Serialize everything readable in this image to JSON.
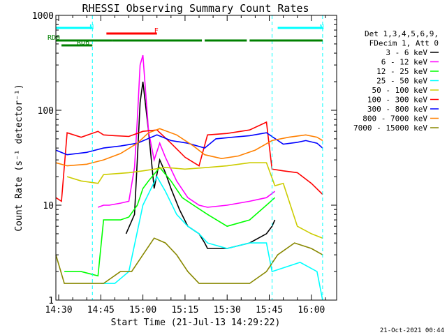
{
  "chart_data": {
    "type": "line",
    "title": "RHESSI Observing Summary Count Rates",
    "xlabel": "Start Time (21-Jul-13 14:29:22)",
    "ylabel": "Count Rate (s⁻¹ detector⁻¹)",
    "yscale": "log",
    "ylim": [
      1,
      1000
    ],
    "xlim": [
      "14:29",
      "16:09"
    ],
    "x_ticks": [
      "14:30",
      "14:45",
      "15:00",
      "15:15",
      "15:30",
      "15:45",
      "16:00"
    ],
    "y_ticks": [
      "1",
      "10",
      "100",
      "1000"
    ],
    "legend_title": [
      "Det 1,3,4,5,6,9,",
      "FDecim 1, Att 0"
    ],
    "legend_position": "right",
    "series": [
      {
        "name": "3 - 6 keV",
        "color": "#000000",
        "x": [
          "14:29",
          "14:38",
          "14:44",
          "14:48",
          "14:51",
          "14:54",
          "14:57",
          "14:58",
          "14:59",
          "15:00",
          "15:02",
          "15:04",
          "15:06",
          "15:08",
          "15:10",
          "15:13",
          "15:16",
          "15:20",
          "15:22",
          "15:23",
          "15:30",
          "15:38",
          "15:44",
          "15:46",
          "15:47"
        ],
        "y": [
          null,
          null,
          null,
          null,
          null,
          5,
          8,
          30,
          120,
          200,
          60,
          15,
          30,
          22,
          15,
          9,
          6,
          5,
          4,
          3.5,
          3.5,
          4,
          5,
          6,
          7
        ]
      },
      {
        "name": "6 - 12 keV",
        "color": "#ff00ff",
        "x": [
          "14:44",
          "14:46",
          "14:48",
          "14:52",
          "14:55",
          "14:57",
          "14:58",
          "14:59",
          "15:00",
          "15:02",
          "15:04",
          "15:06",
          "15:08",
          "15:12",
          "15:16",
          "15:20",
          "15:23",
          "15:30",
          "15:38",
          "15:44",
          "15:47"
        ],
        "y": [
          9.5,
          10,
          10,
          10.5,
          11,
          25,
          80,
          300,
          380,
          60,
          30,
          45,
          32,
          18,
          12,
          10,
          9.5,
          10,
          11,
          12,
          14
        ]
      },
      {
        "name": "12 - 25 keV",
        "color": "#00ff00",
        "x": [
          "14:32",
          "14:38",
          "14:44",
          "14:46",
          "14:52",
          "14:55",
          "14:58",
          "15:00",
          "15:02",
          "15:06",
          "15:10",
          "15:14",
          "15:18",
          "15:23",
          "15:30",
          "15:38",
          "15:44",
          "15:47"
        ],
        "y": [
          2,
          2,
          1.8,
          7,
          7,
          7.5,
          10,
          15,
          18,
          25,
          18,
          12,
          10,
          8,
          6,
          7,
          10,
          12
        ]
      },
      {
        "name": "25 - 50 keV",
        "color": "#00ffff",
        "x": [
          "14:45",
          "14:50",
          "14:55",
          "15:00",
          "15:05",
          "15:08",
          "15:12",
          "15:16",
          "15:20",
          "15:23",
          "15:30",
          "15:38",
          "15:44",
          "15:46",
          "15:56",
          "16:02",
          "16:04"
        ],
        "y": [
          1.5,
          1.5,
          2,
          10,
          20,
          14,
          8,
          6,
          5,
          4,
          3.5,
          4,
          4,
          2,
          2.5,
          2,
          1
        ]
      },
      {
        "name": "50 - 100 keV",
        "color": "#cccc00",
        "x": [
          "14:33",
          "14:38",
          "14:44",
          "14:46",
          "14:55",
          "15:00",
          "15:08",
          "15:15",
          "15:23",
          "15:30",
          "15:38",
          "15:44",
          "15:47",
          "15:50",
          "15:55",
          "16:00",
          "16:04"
        ],
        "y": [
          20,
          18,
          17,
          21,
          22,
          23,
          25,
          24,
          25,
          26,
          28,
          28,
          16,
          17,
          6,
          5,
          4.5
        ]
      },
      {
        "name": "100 - 300 keV",
        "color": "#ff0000",
        "x": [
          "14:29",
          "14:31",
          "14:33",
          "14:38",
          "14:44",
          "14:46",
          "14:50",
          "14:55",
          "15:00",
          "15:05",
          "15:10",
          "15:15",
          "15:20",
          "15:23",
          "15:30",
          "15:38",
          "15:44",
          "15:46",
          "15:50",
          "15:55",
          "16:00",
          "16:04"
        ],
        "y": [
          12,
          11,
          58,
          52,
          60,
          55,
          54,
          53,
          60,
          62,
          45,
          32,
          26,
          55,
          57,
          62,
          75,
          24,
          23,
          22,
          17,
          13
        ]
      },
      {
        "name": "300 - 800 keV",
        "color": "#0000ff",
        "x": [
          "14:29",
          "14:33",
          "14:40",
          "14:46",
          "14:52",
          "14:58",
          "15:05",
          "15:10",
          "15:16",
          "15:22",
          "15:26",
          "15:32",
          "15:38",
          "15:44",
          "15:50",
          "15:55",
          "15:58",
          "16:02",
          "16:04"
        ],
        "y": [
          38,
          34,
          36,
          40,
          42,
          45,
          55,
          48,
          45,
          40,
          50,
          52,
          54,
          58,
          44,
          46,
          48,
          45,
          40
        ]
      },
      {
        "name": "800 - 7000 keV",
        "color": "#ff8000",
        "x": [
          "14:29",
          "14:33",
          "14:40",
          "14:46",
          "14:52",
          "14:58",
          "15:02",
          "15:06",
          "15:12",
          "15:18",
          "15:22",
          "15:28",
          "15:34",
          "15:40",
          "15:46",
          "15:52",
          "15:58",
          "16:02",
          "16:04"
        ],
        "y": [
          28,
          26,
          27,
          30,
          35,
          45,
          58,
          64,
          55,
          42,
          34,
          31,
          33,
          38,
          48,
          52,
          55,
          52,
          48
        ]
      },
      {
        "name": "7000 - 15000 keV",
        "color": "#888800",
        "x": [
          "14:29",
          "14:32",
          "14:38",
          "14:44",
          "14:46",
          "14:52",
          "14:56",
          "15:00",
          "15:04",
          "15:08",
          "15:12",
          "15:16",
          "15:20",
          "15:23",
          "15:30",
          "15:38",
          "15:44",
          "15:48",
          "15:54",
          "16:00",
          "16:04"
        ],
        "y": [
          3,
          1.5,
          1.5,
          1.5,
          1.5,
          2,
          2,
          3,
          4.5,
          4,
          3,
          2,
          1.5,
          1.5,
          1.5,
          1.5,
          2,
          3,
          4,
          3.5,
          3
        ]
      }
    ],
    "annotations": [
      {
        "label": "N",
        "color": "#00ffff",
        "x_start": "14:29",
        "x_end": "14:42"
      },
      {
        "label": "N",
        "color": "#00ffff",
        "x_start": "15:48",
        "x_end": "16:04"
      },
      {
        "label": "F",
        "color": "#ff0000",
        "x_start": "14:47",
        "x_end": "15:05"
      },
      {
        "label": "RD0",
        "color": "#008000",
        "x_start": "14:29",
        "x_end": "14:49"
      },
      {
        "label": "RD6",
        "color": "#008000",
        "x_start": "14:31",
        "x_end": "14:42"
      },
      {
        "label": "",
        "color": "#008000",
        "x_start": "14:49",
        "x_end": "15:21"
      },
      {
        "label": "",
        "color": "#008000",
        "x_start": "15:22",
        "x_end": "15:37"
      },
      {
        "label": "",
        "color": "#008000",
        "x_start": "15:38",
        "x_end": "16:04"
      }
    ],
    "vertical_lines": [
      "14:42",
      "15:46",
      "16:04"
    ]
  },
  "footer_timestamp": "21-Oct-2021 00:44"
}
